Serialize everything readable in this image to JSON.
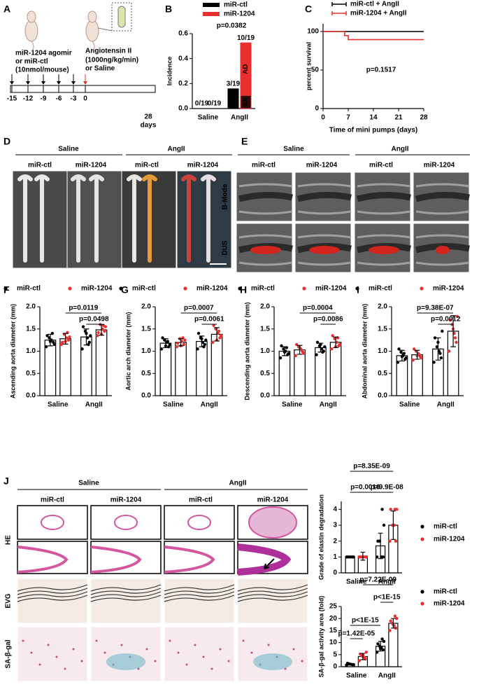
{
  "panel_labels": [
    "A",
    "B",
    "C",
    "D",
    "E",
    "F",
    "G",
    "H",
    "I",
    "J"
  ],
  "schematic": {
    "injection": [
      "miR-1204 agomir",
      "or  miR-ctl",
      "(10nmol/mouse)"
    ],
    "infusion": [
      "Angiotensin II",
      "(1000ng/kg/min)",
      "or Saline"
    ],
    "timeline_ticks": [
      -15,
      -12,
      -9,
      -6,
      -3,
      0,
      28
    ],
    "unit": "days"
  },
  "aorta_photo": {
    "groups": [
      "Saline",
      "AngII"
    ],
    "columns": [
      "miR-ctl",
      "miR-1204",
      "miR-ctl",
      "miR-1204"
    ]
  },
  "ultrasound": {
    "groups": [
      "Saline",
      "AngII"
    ],
    "columns": [
      "miR-ctl",
      "miR-1204",
      "miR-ctl",
      "miR-1204"
    ],
    "rows": [
      "B-Mode",
      "DUS"
    ]
  },
  "histology": {
    "groups": [
      "Saline",
      "AngII"
    ],
    "columns": [
      "miR-ctl",
      "miR-1204",
      "miR-ctl",
      "miR-1204"
    ],
    "rows": [
      "HE",
      "EVG",
      "SA-β-gal"
    ]
  },
  "chart_data": [
    {
      "type": "stacked_bar",
      "y_label": "Incidence",
      "categories": [
        "Saline",
        "AngII"
      ],
      "ylim": [
        0,
        0.6
      ],
      "yticks": [
        {
          "value": 0,
          "label": "0.0"
        },
        {
          "value": 0.2,
          "label": "0.2"
        },
        {
          "value": 0.4,
          "label": "0.4"
        },
        {
          "value": 0.6,
          "label": "0.6"
        }
      ],
      "series": [
        {
          "name": "miR-ctl",
          "color": "#000000",
          "segments": [
            {
              "label": "AA",
              "color": "#000000",
              "values": [
                0,
                0.158
              ]
            }
          ],
          "value_labels": [
            "0/19",
            "3/19"
          ]
        },
        {
          "name": "miR-1204",
          "color": "#e8312f",
          "segments": [
            {
              "label": "AA",
              "color": "#2b0b0b",
              "values": [
                0,
                0.105
              ]
            },
            {
              "label": "AD",
              "color": "#e8312f",
              "values": [
                0,
                0.421
              ]
            }
          ],
          "value_labels": [
            "0/19",
            "10/19"
          ]
        }
      ],
      "annotations": [
        "p=0.0382"
      ]
    },
    {
      "type": "line",
      "x_label": "Time of mini pumps (days)",
      "y_label": "percent survival",
      "xlim": [
        0,
        28
      ],
      "xticks": [
        0,
        7,
        14,
        21,
        28
      ],
      "ylim": [
        0,
        110
      ],
      "yticks": [
        0,
        50,
        100
      ],
      "series": [
        {
          "name": "miR-ctl + AngII",
          "color": "#000000",
          "x": [
            0,
            28
          ],
          "values": [
            100,
            100
          ]
        },
        {
          "name": "miR-1204 + AngII",
          "color": "#e8312f",
          "x": [
            0,
            6,
            6,
            7,
            7,
            28
          ],
          "values": [
            100,
            100,
            94.7,
            94.7,
            89.5,
            89.5
          ]
        }
      ],
      "annotations": [
        "p=0.1517"
      ]
    },
    {
      "type": "bar",
      "y_label": "Ascending aorta diameter (mm)",
      "categories": [
        "Saline",
        "AngII"
      ],
      "ylim": [
        0,
        2
      ],
      "legend": "top",
      "yticks": [
        {
          "value": 0,
          "label": "0.0"
        },
        {
          "value": 0.5,
          "label": "0.5"
        },
        {
          "value": 1,
          "label": "1.0"
        },
        {
          "value": 1.5,
          "label": "1.5"
        },
        {
          "value": 2,
          "label": "2.0"
        }
      ],
      "series": [
        {
          "name": "miR-ctl",
          "color": "#000000",
          "values": [
            1.25,
            1.32
          ],
          "errors": [
            0.13,
            0.18
          ],
          "points": [
            [
              1.1,
              1.2,
              1.25,
              1.3,
              1.35,
              1.15,
              1.4,
              1.22
            ],
            [
              1.05,
              1.2,
              1.3,
              1.45,
              1.55,
              1.35,
              1.15,
              1.4
            ]
          ]
        },
        {
          "name": "miR-1204",
          "color": "#e8312f",
          "values": [
            1.28,
            1.48
          ],
          "errors": [
            0.12,
            0.12
          ],
          "points": [
            [
              1.15,
              1.25,
              1.3,
              1.38,
              1.2,
              1.32,
              1.42,
              1.22
            ],
            [
              1.35,
              1.45,
              1.5,
              1.6,
              1.42,
              1.55,
              1.58,
              1.38
            ]
          ]
        }
      ],
      "annotations": [
        "p=0.0119",
        "p=0.0498"
      ]
    },
    {
      "type": "bar",
      "y_label": "Aortic arch diameter (mm)",
      "categories": [
        "Saline",
        "AngII"
      ],
      "ylim": [
        0,
        2
      ],
      "legend": "top",
      "yticks": [
        {
          "value": 0,
          "label": "0.0"
        },
        {
          "value": 0.5,
          "label": "0.5"
        },
        {
          "value": 1,
          "label": "1.0"
        },
        {
          "value": 1.5,
          "label": "1.5"
        },
        {
          "value": 2,
          "label": "2.0"
        }
      ],
      "series": [
        {
          "name": "miR-ctl",
          "color": "#000000",
          "values": [
            1.18,
            1.22
          ],
          "errors": [
            0.1,
            0.12
          ],
          "points": [
            [
              1.05,
              1.1,
              1.2,
              1.25,
              1.3,
              1.15,
              1.22,
              1.12
            ],
            [
              1.05,
              1.15,
              1.2,
              1.3,
              1.4,
              1.25,
              1.1,
              1.28
            ]
          ]
        },
        {
          "name": "miR-1204",
          "color": "#e8312f",
          "values": [
            1.2,
            1.38
          ],
          "errors": [
            0.08,
            0.15
          ],
          "points": [
            [
              1.1,
              1.15,
              1.22,
              1.28,
              1.18,
              1.25,
              1.3,
              1.12
            ],
            [
              1.2,
              1.3,
              1.4,
              1.5,
              1.58,
              1.35,
              1.45,
              1.25
            ]
          ]
        }
      ],
      "annotations": [
        "p=0.0007",
        "p=0.0061"
      ]
    },
    {
      "type": "bar",
      "y_label": "Descending aorta diameter (mm)",
      "categories": [
        "Saline",
        "AngII"
      ],
      "ylim": [
        0,
        2
      ],
      "legend": "top",
      "yticks": [
        {
          "value": 0,
          "label": "0.0"
        },
        {
          "value": 0.5,
          "label": "0.5"
        },
        {
          "value": 1,
          "label": "1.0"
        },
        {
          "value": 1.5,
          "label": "1.5"
        },
        {
          "value": 2,
          "label": "2.0"
        }
      ],
      "series": [
        {
          "name": "miR-ctl",
          "color": "#000000",
          "values": [
            1.0,
            1.08
          ],
          "errors": [
            0.1,
            0.1
          ],
          "points": [
            [
              0.85,
              0.92,
              1.0,
              1.05,
              1.12,
              0.95,
              1.08,
              0.98
            ],
            [
              0.92,
              1.0,
              1.05,
              1.12,
              1.2,
              1.1,
              0.98,
              1.15
            ]
          ]
        },
        {
          "name": "miR-1204",
          "color": "#e8312f",
          "values": [
            1.03,
            1.2
          ],
          "errors": [
            0.1,
            0.12
          ],
          "points": [
            [
              0.9,
              0.98,
              1.05,
              1.1,
              1.15,
              0.95,
              1.02,
              1.08
            ],
            [
              1.05,
              1.12,
              1.2,
              1.28,
              1.35,
              1.15,
              1.3,
              1.1
            ]
          ]
        }
      ],
      "annotations": [
        "p=0.0004",
        "p=0.0086"
      ]
    },
    {
      "type": "bar",
      "y_label": "Abdominal aorta diameter (mm)",
      "categories": [
        "Saline",
        "AngII"
      ],
      "ylim": [
        0,
        2
      ],
      "legend": "top",
      "yticks": [
        {
          "value": 0,
          "label": "0.0"
        },
        {
          "value": 0.5,
          "label": "0.5"
        },
        {
          "value": 1,
          "label": "1.0"
        },
        {
          "value": 1.5,
          "label": "1.5"
        },
        {
          "value": 2,
          "label": "2.0"
        }
      ],
      "series": [
        {
          "name": "miR-ctl",
          "color": "#000000",
          "values": [
            0.9,
            1.05
          ],
          "errors": [
            0.12,
            0.25
          ],
          "points": [
            [
              0.75,
              0.82,
              0.9,
              0.98,
              1.05,
              0.85,
              0.95,
              0.88
            ],
            [
              0.75,
              0.85,
              1.0,
              1.1,
              1.3,
              1.45,
              0.95,
              1.2
            ]
          ]
        },
        {
          "name": "miR-1204",
          "color": "#e8312f",
          "values": [
            0.92,
            1.45
          ],
          "errors": [
            0.1,
            0.35
          ],
          "points": [
            [
              0.8,
              0.88,
              0.95,
              1.0,
              1.05,
              0.85,
              0.92,
              0.9
            ],
            [
              1.0,
              1.2,
              1.4,
              1.6,
              1.7,
              1.78,
              1.3,
              1.5
            ]
          ]
        }
      ],
      "annotations": [
        "p=9.38E-07",
        "p=0.0012"
      ]
    },
    {
      "type": "bar",
      "y_label": "Grade of elastin degradation",
      "categories": [
        "Saline",
        "AngII"
      ],
      "ylim": [
        0,
        4.5
      ],
      "legend": "right",
      "yticks": [
        0,
        1,
        2,
        3,
        4
      ],
      "series": [
        {
          "name": "miR-ctl",
          "color": "#000000",
          "values": [
            1,
            1.7
          ],
          "errors": [
            0,
            0.8
          ],
          "points": [
            [
              1,
              1,
              1,
              1,
              1,
              1
            ],
            [
              1,
              1,
              1,
              2,
              2,
              3,
              4
            ]
          ]
        },
        {
          "name": "miR-1204",
          "color": "#e8312f",
          "values": [
            1.05,
            3.0
          ],
          "errors": [
            0.25,
            0.9
          ],
          "points": [
            [
              1,
              1,
              1,
              1,
              1,
              1
            ],
            [
              2,
              2,
              3,
              3,
              4,
              4,
              4
            ]
          ]
        }
      ],
      "annotations": [
        "p=8.35E-09",
        "p=0.0016",
        "p=9.9E-08"
      ]
    },
    {
      "type": "bar",
      "y_label": "SA-β-gal activity area (fold)",
      "categories": [
        "Saline",
        "AngII"
      ],
      "ylim": [
        0,
        25
      ],
      "legend": "right",
      "yticks": [
        0,
        5,
        10,
        15,
        20,
        25
      ],
      "series": [
        {
          "name": "miR-ctl",
          "color": "#000000",
          "values": [
            1.0,
            8.5
          ],
          "errors": [
            0.3,
            2
          ],
          "points": [
            [
              0.6,
              0.8,
              1.0,
              1.2,
              1.4,
              0.9
            ],
            [
              6,
              7,
              8,
              8.5,
              9.5,
              10.5,
              11.5,
              7.5
            ]
          ]
        },
        {
          "name": "miR-1204",
          "color": "#e8312f",
          "values": [
            4.2,
            18
          ],
          "errors": [
            1.3,
            2
          ],
          "points": [
            [
              2.5,
              3.2,
              4.0,
              4.5,
              5.2,
              6.0,
              3.8,
              4.8
            ],
            [
              15,
              16,
              17,
              18,
              19,
              20,
              21,
              17.5
            ]
          ]
        }
      ],
      "annotations": [
        "p=7.22E-09",
        "p<1E-15",
        "p<1E-15",
        "p=1.42E-05"
      ]
    }
  ]
}
